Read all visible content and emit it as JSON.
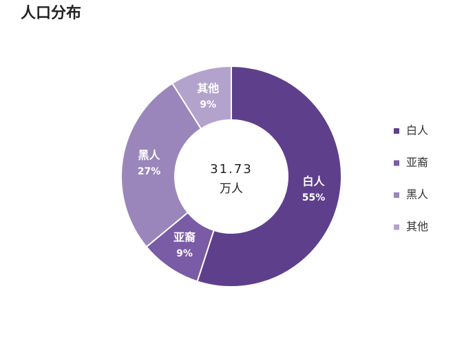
{
  "chart_data": {
    "type": "pie",
    "title": "人口分布",
    "categories": [
      "白人",
      "亚裔",
      "黑人",
      "其他"
    ],
    "values": [
      55,
      9,
      27,
      9
    ],
    "value_labels": [
      "55%",
      "9%",
      "27%",
      "9%"
    ],
    "colors": [
      "#5e3f8c",
      "#7a5ba6",
      "#9a86bb",
      "#b3a3cc"
    ],
    "center_value": 31.73,
    "center_unit": "万人",
    "legend": "right"
  }
}
